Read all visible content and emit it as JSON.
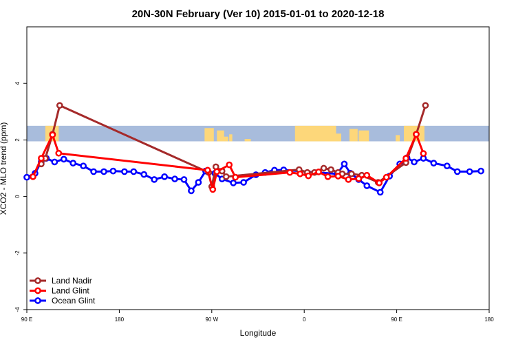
{
  "chart_data": {
    "type": "line",
    "title": "20N-30N February (Ver 10)   2015-01-01 to 2020-12-18",
    "xlabel": "Longitude",
    "ylabel": "XCO2 - MLO trend (ppm)",
    "xlim": [
      90,
      540
    ],
    "ylim": [
      -4,
      6
    ],
    "x_ticks": [
      {
        "value": 90,
        "label": "90 E"
      },
      {
        "value": 180,
        "label": "180"
      },
      {
        "value": 270,
        "label": "90 W"
      },
      {
        "value": 360,
        "label": "0"
      },
      {
        "value": 450,
        "label": "90 E"
      },
      {
        "value": 540,
        "label": "180"
      }
    ],
    "y_ticks": [
      {
        "value": -4,
        "label": "-4"
      },
      {
        "value": -2,
        "label": "-2"
      },
      {
        "value": 0,
        "label": "0"
      },
      {
        "value": 2,
        "label": "2"
      },
      {
        "value": 4,
        "label": "4"
      }
    ],
    "map_band": {
      "y_min": 1.95,
      "y_max": 2.5,
      "water_color": "#a8bcdc",
      "land_color": "#fdd77a"
    },
    "legend_position": "bottom-left",
    "series": [
      {
        "name": "Land Nadir",
        "color": "#a52a2a",
        "points": [
          [
            104,
            1.15
          ],
          [
            108,
            1.35
          ],
          [
            115,
            2.2
          ],
          [
            122,
            3.22
          ],
          [
            267,
            0.85
          ],
          [
            270,
            0.35
          ],
          [
            274,
            1.05
          ],
          [
            280,
            0.9
          ],
          [
            284,
            0.7
          ],
          [
            355,
            0.95
          ],
          [
            363,
            0.85
          ],
          [
            370,
            0.85
          ],
          [
            379,
            1.0
          ],
          [
            386,
            0.95
          ],
          [
            393,
            0.85
          ],
          [
            397,
            0.8
          ],
          [
            406,
            0.8
          ],
          [
            416,
            0.75
          ],
          [
            432,
            0.5
          ],
          [
            459,
            1.2
          ],
          [
            469,
            2.2
          ],
          [
            478,
            3.22
          ]
        ]
      },
      {
        "name": "Land Glint",
        "color": "#ff0000",
        "points": [
          [
            96,
            0.7
          ],
          [
            104,
            1.35
          ],
          [
            115,
            2.18
          ],
          [
            121,
            1.53
          ],
          [
            266,
            0.93
          ],
          [
            271,
            0.25
          ],
          [
            275,
            0.88
          ],
          [
            287,
            1.12
          ],
          [
            293,
            0.68
          ],
          [
            346,
            0.85
          ],
          [
            356,
            0.8
          ],
          [
            364,
            0.73
          ],
          [
            374,
            0.87
          ],
          [
            383,
            0.7
          ],
          [
            393,
            0.72
          ],
          [
            403,
            0.6
          ],
          [
            413,
            0.63
          ],
          [
            421,
            0.75
          ],
          [
            433,
            0.48
          ],
          [
            440,
            0.68
          ],
          [
            459,
            1.35
          ],
          [
            469,
            2.2
          ],
          [
            476,
            1.52
          ]
        ]
      },
      {
        "name": "Ocean Glint",
        "color": "#0000ff",
        "points": [
          [
            90,
            0.68
          ],
          [
            98,
            0.82
          ],
          [
            104,
            1.22
          ],
          [
            109,
            1.35
          ],
          [
            117,
            1.22
          ],
          [
            126,
            1.32
          ],
          [
            135,
            1.18
          ],
          [
            145,
            1.08
          ],
          [
            155,
            0.88
          ],
          [
            165,
            0.88
          ],
          [
            174,
            0.9
          ],
          [
            185,
            0.88
          ],
          [
            194,
            0.88
          ],
          [
            204,
            0.78
          ],
          [
            214,
            0.6
          ],
          [
            224,
            0.7
          ],
          [
            234,
            0.62
          ],
          [
            243,
            0.6
          ],
          [
            250,
            0.2
          ],
          [
            257,
            0.5
          ],
          [
            264,
            0.9
          ],
          [
            273,
            0.82
          ],
          [
            280,
            0.62
          ],
          [
            291,
            0.48
          ],
          [
            301,
            0.5
          ],
          [
            313,
            0.77
          ],
          [
            322,
            0.85
          ],
          [
            331,
            0.93
          ],
          [
            340,
            0.94
          ],
          [
            392,
            0.8
          ],
          [
            399,
            1.15
          ],
          [
            405,
            0.82
          ],
          [
            413,
            0.6
          ],
          [
            421,
            0.38
          ],
          [
            434,
            0.15
          ],
          [
            443,
            0.72
          ],
          [
            453,
            1.15
          ],
          [
            460,
            1.37
          ],
          [
            467,
            1.22
          ],
          [
            476,
            1.35
          ],
          [
            486,
            1.18
          ],
          [
            499,
            1.08
          ],
          [
            509,
            0.88
          ],
          [
            521,
            0.88
          ],
          [
            532,
            0.9
          ]
        ]
      }
    ]
  }
}
